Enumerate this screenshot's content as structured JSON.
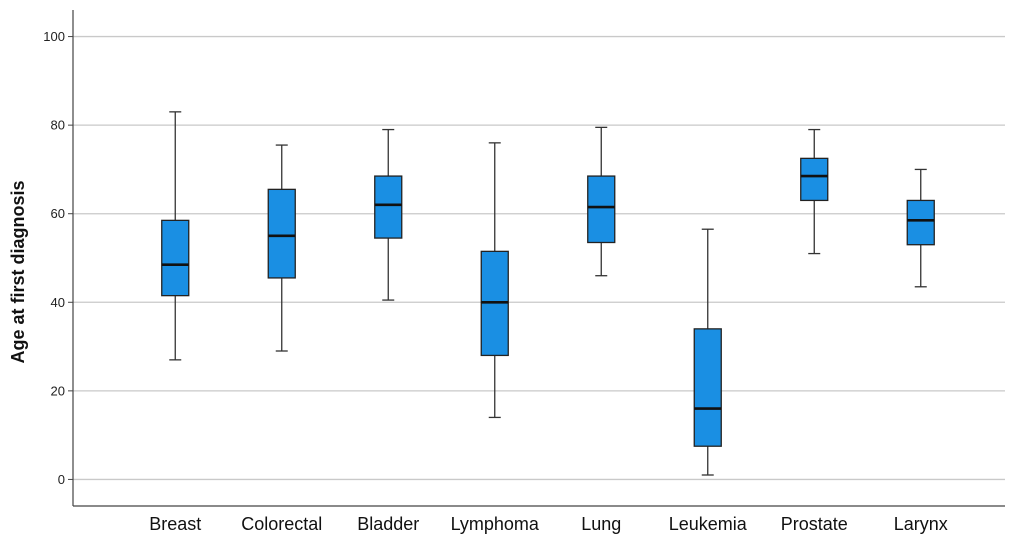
{
  "chart_data": {
    "type": "box",
    "title": "",
    "xlabel": "",
    "ylabel": "Age at first diagnosis",
    "ylim": [
      -6,
      106
    ],
    "yticks": [
      0,
      20,
      40,
      60,
      80,
      100
    ],
    "grid": true,
    "box_color": "#1a8fe3",
    "categories": [
      "Breast",
      "Colorectal",
      "Bladder",
      "Lymphoma",
      "Lung",
      "Leukemia",
      "Prostate",
      "Larynx"
    ],
    "boxes": [
      {
        "category": "Breast",
        "whisker_low": 27,
        "q1": 41.5,
        "median": 48.5,
        "q3": 58.5,
        "whisker_high": 83
      },
      {
        "category": "Colorectal",
        "whisker_low": 29,
        "q1": 45.5,
        "median": 55,
        "q3": 65.5,
        "whisker_high": 75.5
      },
      {
        "category": "Bladder",
        "whisker_low": 40.5,
        "q1": 54.5,
        "median": 62,
        "q3": 68.5,
        "whisker_high": 79
      },
      {
        "category": "Lymphoma",
        "whisker_low": 14,
        "q1": 28,
        "median": 40,
        "q3": 51.5,
        "whisker_high": 76
      },
      {
        "category": "Lung",
        "whisker_low": 46,
        "q1": 53.5,
        "median": 61.5,
        "q3": 68.5,
        "whisker_high": 79.5
      },
      {
        "category": "Leukemia",
        "whisker_low": 1,
        "q1": 7.5,
        "median": 16,
        "q3": 34,
        "whisker_high": 56.5
      },
      {
        "category": "Prostate",
        "whisker_low": 51,
        "q1": 63,
        "median": 68.5,
        "q3": 72.5,
        "whisker_high": 79
      },
      {
        "category": "Larynx",
        "whisker_low": 43.5,
        "q1": 53,
        "median": 58.5,
        "q3": 63,
        "whisker_high": 70
      }
    ]
  }
}
